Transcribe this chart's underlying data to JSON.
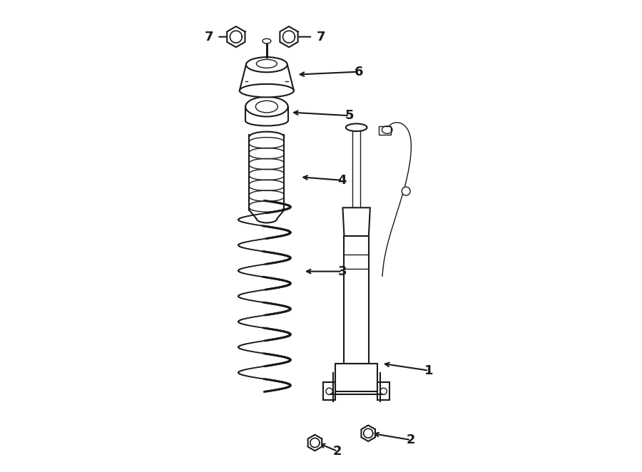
{
  "bg_color": "#ffffff",
  "line_color": "#1a1a1a",
  "figsize": [
    9.0,
    6.62
  ],
  "dpi": 100
}
